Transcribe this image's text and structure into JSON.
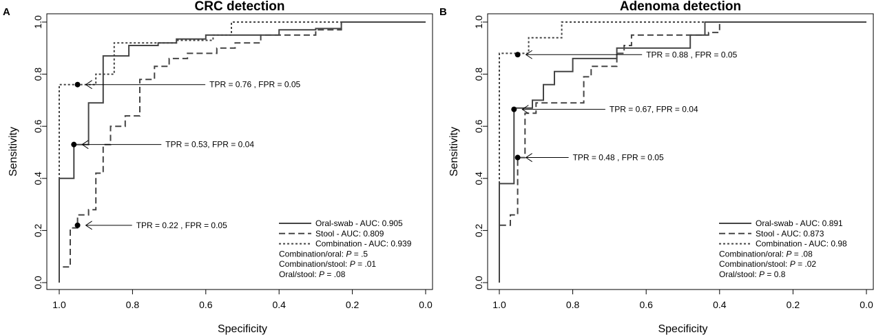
{
  "chart_data": [
    {
      "panel_label": "A",
      "type": "line",
      "title": "CRC detection",
      "xlabel": "Specificity",
      "ylabel": "Sensitivity",
      "xlim": [
        1.0,
        0.0
      ],
      "ylim": [
        0.0,
        1.0
      ],
      "x_reversed": true,
      "xticks": [
        "1.0",
        "0.8",
        "0.6",
        "0.4",
        "0.2",
        "0.0"
      ],
      "yticks": [
        "0.0",
        "0.2",
        "0.4",
        "0.6",
        "0.8",
        "1.0"
      ],
      "grid": false,
      "legend_position": "bottom-right",
      "series": [
        {
          "name": "Oral-swab",
          "legend": "Oral-swab - AUC: 0.905",
          "style": "solid",
          "points": [
            [
              1.0,
              0.0
            ],
            [
              1.0,
              0.4
            ],
            [
              0.96,
              0.4
            ],
            [
              0.96,
              0.53
            ],
            [
              0.92,
              0.53
            ],
            [
              0.92,
              0.69
            ],
            [
              0.88,
              0.69
            ],
            [
              0.88,
              0.87
            ],
            [
              0.81,
              0.87
            ],
            [
              0.81,
              0.91
            ],
            [
              0.73,
              0.91
            ],
            [
              0.73,
              0.92
            ],
            [
              0.68,
              0.92
            ],
            [
              0.68,
              0.935
            ],
            [
              0.6,
              0.935
            ],
            [
              0.6,
              0.95
            ],
            [
              0.4,
              0.95
            ],
            [
              0.4,
              0.97
            ],
            [
              0.3,
              0.97
            ],
            [
              0.3,
              0.975
            ],
            [
              0.23,
              0.975
            ],
            [
              0.23,
              1.0
            ],
            [
              0.0,
              1.0
            ]
          ]
        },
        {
          "name": "Stool",
          "legend": "Stool - AUC: 0.809",
          "style": "dashed",
          "points": [
            [
              1.0,
              0.0
            ],
            [
              1.0,
              0.06
            ],
            [
              0.97,
              0.06
            ],
            [
              0.97,
              0.21
            ],
            [
              0.95,
              0.21
            ],
            [
              0.95,
              0.26
            ],
            [
              0.92,
              0.26
            ],
            [
              0.92,
              0.28
            ],
            [
              0.9,
              0.28
            ],
            [
              0.9,
              0.42
            ],
            [
              0.88,
              0.42
            ],
            [
              0.88,
              0.53
            ],
            [
              0.86,
              0.53
            ],
            [
              0.86,
              0.6
            ],
            [
              0.82,
              0.6
            ],
            [
              0.82,
              0.64
            ],
            [
              0.78,
              0.64
            ],
            [
              0.78,
              0.78
            ],
            [
              0.74,
              0.78
            ],
            [
              0.74,
              0.83
            ],
            [
              0.7,
              0.83
            ],
            [
              0.7,
              0.86
            ],
            [
              0.65,
              0.86
            ],
            [
              0.65,
              0.88
            ],
            [
              0.57,
              0.88
            ],
            [
              0.57,
              0.9
            ],
            [
              0.52,
              0.9
            ],
            [
              0.52,
              0.92
            ],
            [
              0.45,
              0.92
            ],
            [
              0.45,
              0.95
            ],
            [
              0.3,
              0.95
            ],
            [
              0.3,
              0.97
            ],
            [
              0.23,
              0.97
            ],
            [
              0.23,
              1.0
            ],
            [
              0.0,
              1.0
            ]
          ]
        },
        {
          "name": "Combination",
          "legend": "Combination - AUC: 0.939",
          "style": "dotted",
          "points": [
            [
              1.0,
              0.0
            ],
            [
              1.0,
              0.76
            ],
            [
              0.9,
              0.76
            ],
            [
              0.9,
              0.8
            ],
            [
              0.85,
              0.8
            ],
            [
              0.85,
              0.92
            ],
            [
              0.68,
              0.92
            ],
            [
              0.68,
              0.93
            ],
            [
              0.58,
              0.93
            ],
            [
              0.58,
              0.95
            ],
            [
              0.53,
              0.95
            ],
            [
              0.53,
              1.0
            ],
            [
              0.0,
              1.0
            ]
          ]
        }
      ],
      "markers": [
        {
          "x": 0.95,
          "y": 0.76,
          "label": "TPR = 0.76 ,  FPR = 0.05",
          "label_x": 0.59
        },
        {
          "x": 0.96,
          "y": 0.53,
          "label": "TPR = 0.53, FPR = 0.04",
          "label_x": 0.71
        },
        {
          "x": 0.95,
          "y": 0.22,
          "label": "TPR = 0.22 ,  FPR = 0.05",
          "label_x": 0.79
        }
      ],
      "legend_extra": [
        {
          "pre": "Combination/oral: ",
          "italic": "P",
          "post": " = .5"
        },
        {
          "pre": "Combination/stool: ",
          "italic": "P",
          "post": " = .01"
        },
        {
          "pre": "Oral/stool: ",
          "italic": "P",
          "post": " = .08"
        }
      ]
    },
    {
      "panel_label": "B",
      "type": "line",
      "title": "Adenoma detection",
      "xlabel": "Specificity",
      "ylabel": "Sensitivity",
      "xlim": [
        1.0,
        0.0
      ],
      "ylim": [
        0.0,
        1.0
      ],
      "x_reversed": true,
      "xticks": [
        "1.0",
        "0.8",
        "0.6",
        "0.4",
        "0.2",
        "0.0"
      ],
      "yticks": [
        "0.0",
        "0.2",
        "0.4",
        "0.6",
        "0.8",
        "1.0"
      ],
      "grid": false,
      "legend_position": "bottom-right",
      "series": [
        {
          "name": "Oral-swab",
          "legend": "Oral-swab - AUC: 0.891",
          "style": "solid",
          "points": [
            [
              1.0,
              0.0
            ],
            [
              1.0,
              0.38
            ],
            [
              0.96,
              0.38
            ],
            [
              0.96,
              0.67
            ],
            [
              0.91,
              0.67
            ],
            [
              0.91,
              0.7
            ],
            [
              0.88,
              0.7
            ],
            [
              0.88,
              0.76
            ],
            [
              0.85,
              0.76
            ],
            [
              0.85,
              0.81
            ],
            [
              0.8,
              0.81
            ],
            [
              0.8,
              0.86
            ],
            [
              0.68,
              0.86
            ],
            [
              0.68,
              0.9
            ],
            [
              0.48,
              0.9
            ],
            [
              0.48,
              0.95
            ],
            [
              0.44,
              0.95
            ],
            [
              0.44,
              1.0
            ],
            [
              0.0,
              1.0
            ]
          ]
        },
        {
          "name": "Stool",
          "legend": "Stool - AUC: 0.873",
          "style": "dashed",
          "points": [
            [
              1.0,
              0.0
            ],
            [
              1.0,
              0.22
            ],
            [
              0.97,
              0.22
            ],
            [
              0.97,
              0.26
            ],
            [
              0.95,
              0.26
            ],
            [
              0.95,
              0.48
            ],
            [
              0.93,
              0.48
            ],
            [
              0.93,
              0.65
            ],
            [
              0.9,
              0.65
            ],
            [
              0.9,
              0.69
            ],
            [
              0.77,
              0.69
            ],
            [
              0.77,
              0.79
            ],
            [
              0.75,
              0.79
            ],
            [
              0.75,
              0.83
            ],
            [
              0.68,
              0.83
            ],
            [
              0.68,
              0.88
            ],
            [
              0.66,
              0.88
            ],
            [
              0.66,
              0.91
            ],
            [
              0.64,
              0.91
            ],
            [
              0.64,
              0.95
            ],
            [
              0.43,
              0.95
            ],
            [
              0.43,
              0.96
            ],
            [
              0.4,
              0.96
            ],
            [
              0.4,
              1.0
            ],
            [
              0.0,
              1.0
            ]
          ]
        },
        {
          "name": "Combination",
          "legend": "Combination - AUC: 0.98",
          "style": "dotted",
          "points": [
            [
              1.0,
              0.0
            ],
            [
              1.0,
              0.88
            ],
            [
              0.92,
              0.88
            ],
            [
              0.92,
              0.94
            ],
            [
              0.83,
              0.94
            ],
            [
              0.83,
              1.0
            ],
            [
              0.0,
              1.0
            ]
          ]
        }
      ],
      "markers": [
        {
          "x": 0.95,
          "y": 0.875,
          "label": "TPR = 0.88 ,  FPR = 0.05",
          "label_x": 0.6
        },
        {
          "x": 0.96,
          "y": 0.665,
          "label": "TPR = 0.67, FPR = 0.04",
          "label_x": 0.7
        },
        {
          "x": 0.95,
          "y": 0.48,
          "label": "TPR = 0.48 ,  FPR = 0.05",
          "label_x": 0.8
        }
      ],
      "legend_extra": [
        {
          "pre": "Combination/oral: ",
          "italic": "P",
          "post": " = .08"
        },
        {
          "pre": "Combination/stool: ",
          "italic": "P",
          "post": " = .02"
        },
        {
          "pre": "Oral/stool: ",
          "italic": "P",
          "post": " = 0.8"
        }
      ]
    }
  ]
}
